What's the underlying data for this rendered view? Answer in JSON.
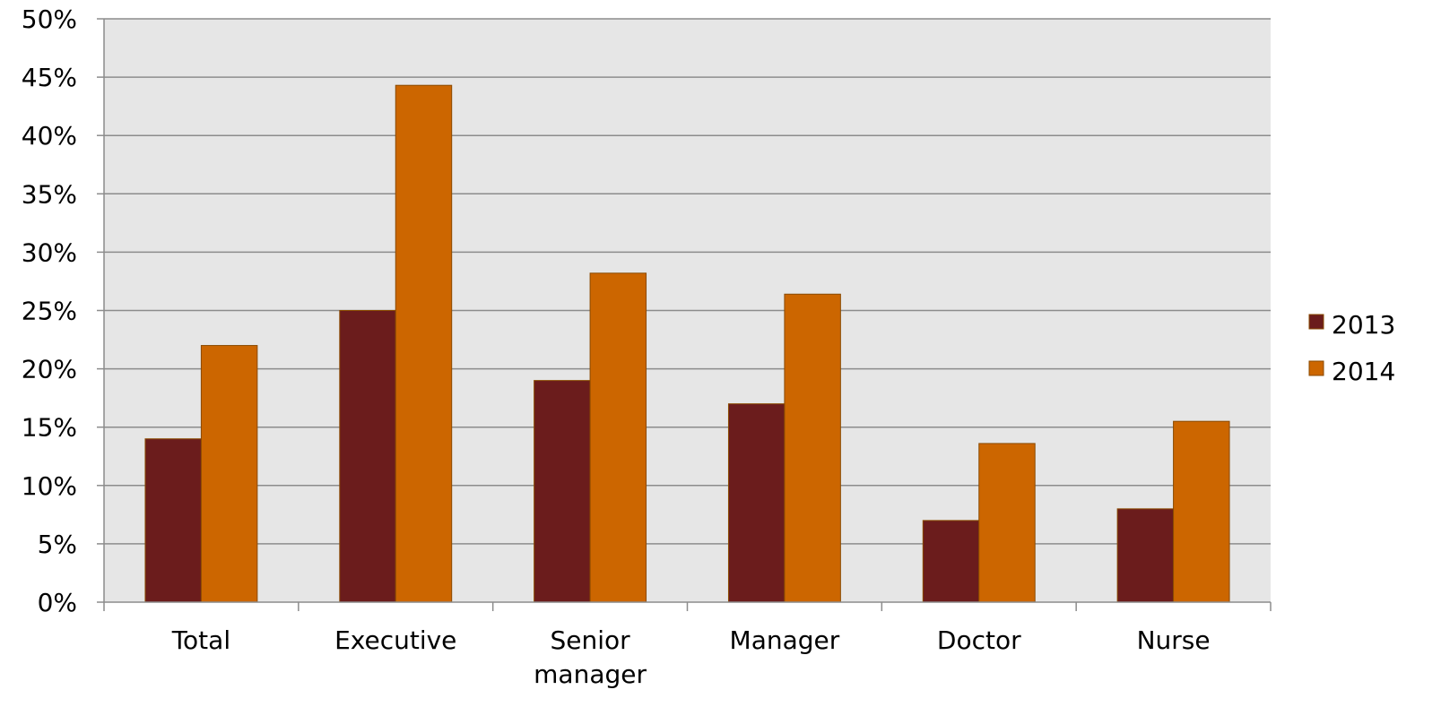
{
  "chart_data": {
    "type": "bar",
    "categories": [
      "Total",
      "Executive",
      "Senior\nmanager",
      "Manager",
      "Doctor",
      "Nurse"
    ],
    "series": [
      {
        "name": "2013",
        "values": [
          14,
          25,
          19,
          17,
          7,
          8
        ],
        "color": "#6B1C1C"
      },
      {
        "name": "2014",
        "values": [
          22,
          44.3,
          28.2,
          26.4,
          13.6,
          15.5
        ],
        "color": "#CC6600"
      }
    ],
    "ylim": [
      0,
      50
    ],
    "y_ticks": [
      0,
      5,
      10,
      15,
      20,
      25,
      30,
      35,
      40,
      45,
      50
    ],
    "y_tick_format": "%",
    "grid": true,
    "legend_position": "right",
    "plot_background": "#E6E6E6",
    "gridline_color": "#8C8C8C",
    "bar_border_color": "#8A4A00"
  }
}
